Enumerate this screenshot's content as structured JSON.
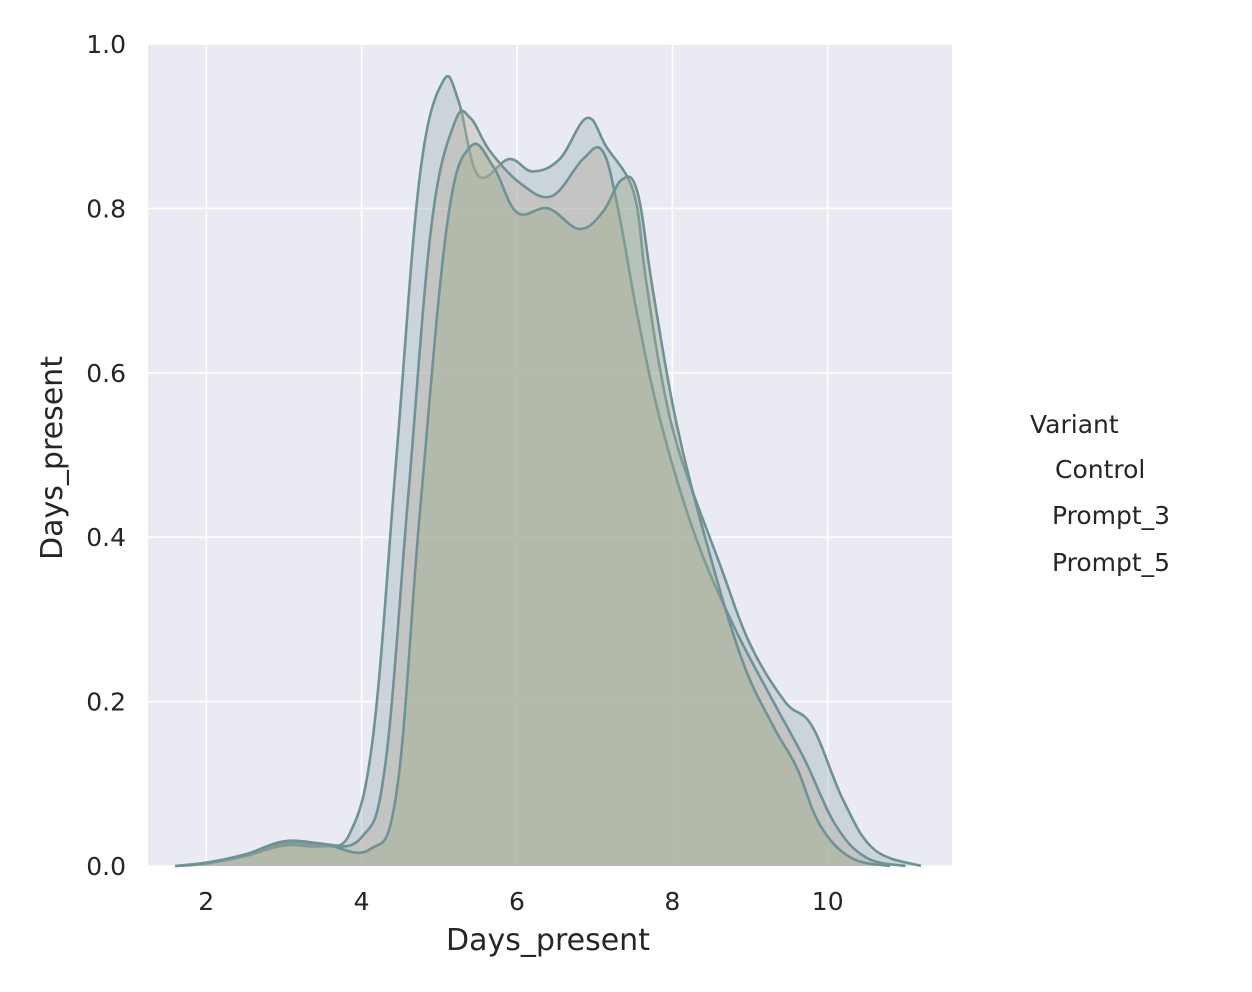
{
  "chart_data": {
    "type": "area",
    "title": "",
    "xlabel": "Days_present",
    "ylabel": "Days_present",
    "xlim": [
      1.25,
      11.6
    ],
    "ylim": [
      0,
      1.0
    ],
    "x_ticks": [
      "2",
      "4",
      "6",
      "8",
      "10"
    ],
    "y_ticks": [
      "0.0",
      "0.2",
      "0.4",
      "0.6",
      "0.8",
      "1.0"
    ],
    "grid": true,
    "legend": {
      "title": "Variant",
      "placement": "right",
      "entries": [
        "Control",
        "Prompt_3",
        "Prompt_5"
      ]
    },
    "colors": {
      "plot_background": "#eaeaf2",
      "grid": "#ffffff",
      "series_fill": [
        "#a3b6bd",
        "#b9b0a0",
        "#9aaa8c"
      ],
      "series_line": "#6f9296"
    },
    "series": [
      {
        "name": "Control",
        "x": [
          1.6,
          2.0,
          2.5,
          3.0,
          3.5,
          3.85,
          4.15,
          4.45,
          4.75,
          5.05,
          5.25,
          5.5,
          5.9,
          6.2,
          6.55,
          6.9,
          7.15,
          7.5,
          7.65,
          7.85,
          8.1,
          8.6,
          9.0,
          9.45,
          9.8,
          10.2,
          10.6,
          11.2
        ],
        "y": [
          0.0,
          0.004,
          0.014,
          0.028,
          0.026,
          0.04,
          0.16,
          0.5,
          0.84,
          0.955,
          0.93,
          0.84,
          0.86,
          0.845,
          0.86,
          0.91,
          0.875,
          0.82,
          0.72,
          0.6,
          0.5,
          0.37,
          0.27,
          0.2,
          0.17,
          0.08,
          0.02,
          0.0
        ]
      },
      {
        "name": "Prompt_3",
        "x": [
          1.6,
          2.0,
          2.5,
          3.0,
          3.5,
          4.0,
          4.3,
          4.6,
          4.9,
          5.2,
          5.4,
          5.65,
          6.05,
          6.45,
          6.85,
          7.1,
          7.3,
          7.55,
          7.85,
          8.3,
          8.8,
          9.3,
          9.7,
          10.1,
          10.5,
          11.0
        ],
        "y": [
          0.0,
          0.003,
          0.012,
          0.025,
          0.024,
          0.035,
          0.12,
          0.45,
          0.78,
          0.905,
          0.91,
          0.87,
          0.83,
          0.815,
          0.86,
          0.87,
          0.8,
          0.67,
          0.54,
          0.4,
          0.29,
          0.2,
          0.13,
          0.05,
          0.01,
          0.0
        ]
      },
      {
        "name": "Prompt_5",
        "x": [
          1.6,
          2.0,
          2.5,
          3.0,
          3.5,
          4.1,
          4.45,
          4.75,
          5.1,
          5.4,
          5.7,
          6.0,
          6.4,
          6.8,
          7.1,
          7.35,
          7.55,
          7.75,
          8.05,
          8.45,
          8.9,
          9.3,
          9.6,
          9.9,
          10.3,
          10.8
        ],
        "y": [
          0.0,
          0.004,
          0.014,
          0.03,
          0.027,
          0.02,
          0.09,
          0.43,
          0.78,
          0.875,
          0.85,
          0.795,
          0.8,
          0.775,
          0.795,
          0.835,
          0.82,
          0.7,
          0.54,
          0.39,
          0.25,
          0.17,
          0.12,
          0.05,
          0.01,
          0.0
        ]
      }
    ]
  }
}
